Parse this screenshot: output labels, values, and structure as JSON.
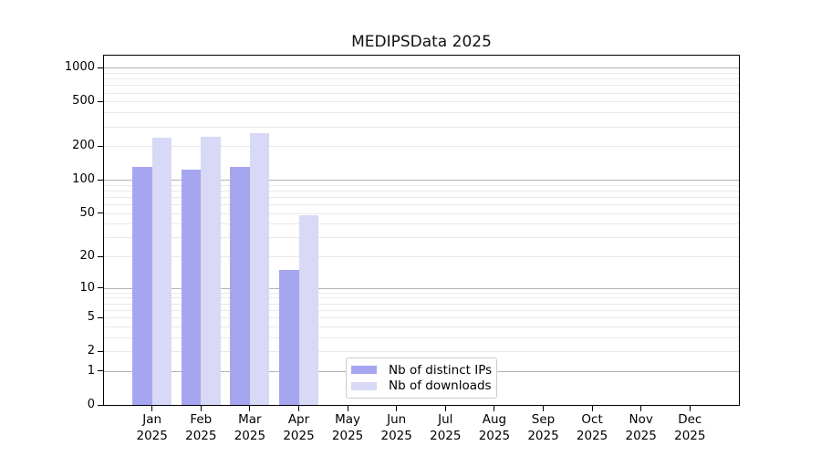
{
  "chart_data": {
    "type": "bar",
    "title": "MEDIPSData 2025",
    "categories": [
      "Jan",
      "Feb",
      "Mar",
      "Apr",
      "May",
      "Jun",
      "Jul",
      "Aug",
      "Sep",
      "Oct",
      "Nov",
      "Dec"
    ],
    "x_sublabel": "2025",
    "series": [
      {
        "name": "Nb of distinct IPs",
        "color": "#a6a6f0",
        "values": [
          130,
          124,
          130,
          15,
          0,
          0,
          0,
          0,
          0,
          0,
          0,
          0
        ]
      },
      {
        "name": "Nb of downloads",
        "color": "#d8d8f7",
        "values": [
          240,
          243,
          261,
          48,
          0,
          0,
          0,
          0,
          0,
          0,
          0,
          0
        ]
      }
    ],
    "y_ticks": [
      0,
      1,
      2,
      5,
      10,
      20,
      50,
      100,
      200,
      500,
      1000
    ],
    "y_scale": "log1p",
    "ylim": [
      0,
      1285
    ],
    "grid": "both",
    "legend": {
      "position": "lower-center"
    },
    "colors": {
      "major_grid": "#b3b3b3",
      "minor_grid": "#e9e9e9",
      "axis": "#000000",
      "text": "#000000",
      "background": "#ffffff"
    }
  }
}
